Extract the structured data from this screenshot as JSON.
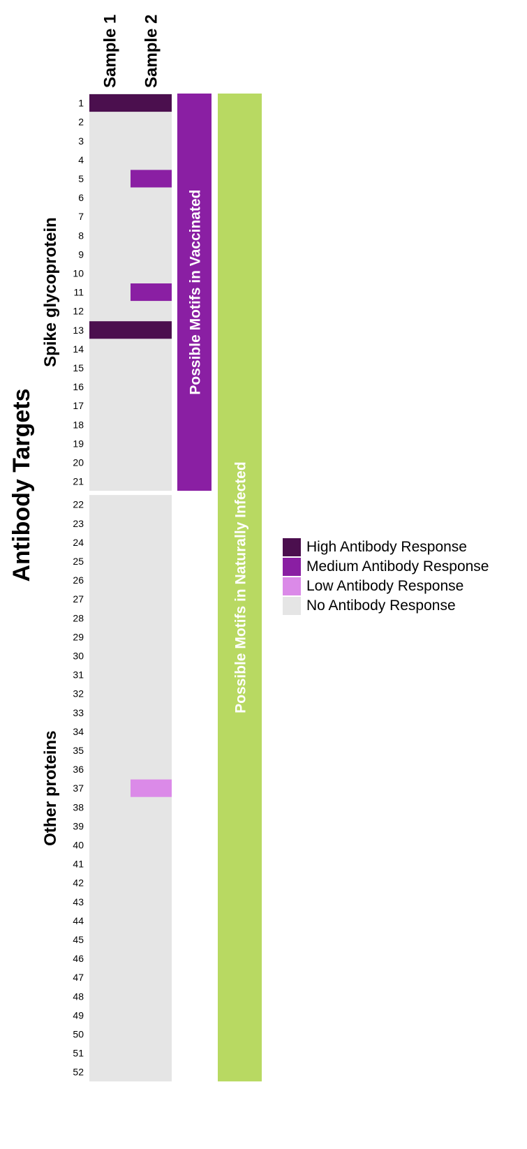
{
  "chart_data": {
    "type": "heatmap",
    "title": "",
    "ylabel": "Antibody Targets",
    "columns": [
      "Sample 1",
      "Sample 2"
    ],
    "rows": [
      "1",
      "2",
      "3",
      "4",
      "5",
      "6",
      "7",
      "8",
      "9",
      "10",
      "11",
      "12",
      "13",
      "14",
      "15",
      "16",
      "17",
      "18",
      "19",
      "20",
      "21",
      "22",
      "23",
      "24",
      "25",
      "26",
      "27",
      "28",
      "29",
      "30",
      "31",
      "32",
      "33",
      "34",
      "35",
      "36",
      "37",
      "38",
      "39",
      "40",
      "41",
      "42",
      "43",
      "44",
      "45",
      "46",
      "47",
      "48",
      "49",
      "50",
      "51",
      "52"
    ],
    "groups": [
      {
        "name": "Spike glycoprotein",
        "first_row": 1,
        "last_row": 21
      },
      {
        "name": "Other proteins",
        "first_row": 22,
        "last_row": 52
      }
    ],
    "levels": [
      {
        "key": "high",
        "label": "High Antibody Response",
        "color": "#4b0f4e"
      },
      {
        "key": "medium",
        "label": "Medium Antibody Response",
        "color": "#8a1fa3"
      },
      {
        "key": "low",
        "label": "Low Antibody Response",
        "color": "#db8ae8"
      },
      {
        "key": "none",
        "label": "No Antibody Response",
        "color": "#e5e5e5"
      }
    ],
    "responses": [
      {
        "row": 1,
        "column": "Sample 1",
        "level": "high"
      },
      {
        "row": 1,
        "column": "Sample 2",
        "level": "high"
      },
      {
        "row": 5,
        "column": "Sample 2",
        "level": "medium"
      },
      {
        "row": 11,
        "column": "Sample 2",
        "level": "medium"
      },
      {
        "row": 13,
        "column": "Sample 1",
        "level": "high"
      },
      {
        "row": 13,
        "column": "Sample 2",
        "level": "high"
      },
      {
        "row": 37,
        "column": "Sample 2",
        "level": "low"
      }
    ],
    "default_level": "none",
    "motif_bars": [
      {
        "label": "Possible Motifs in Vaccinated",
        "first_row": 1,
        "last_row": 21,
        "color": "#8a1fa3"
      },
      {
        "label": "Possible Motifs in Naturally Infected",
        "first_row": 1,
        "last_row": 52,
        "color": "#b8d962"
      }
    ],
    "legend_position": "right"
  }
}
